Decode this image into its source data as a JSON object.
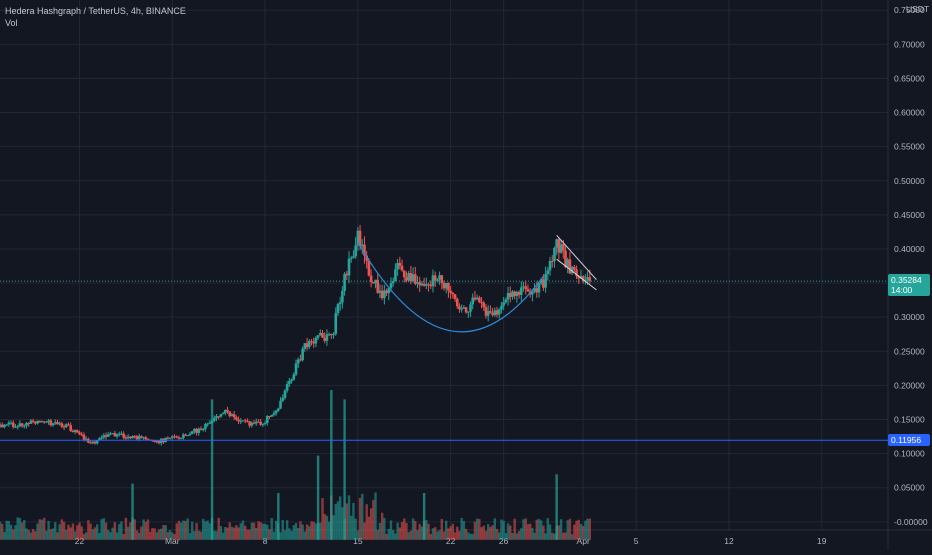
{
  "header": {
    "symbol_line": "Hedera Hashgraph / TetherUS, 4h, BINANCE",
    "indicator_label": "Vol"
  },
  "price_axis": {
    "currency": "USDT",
    "ticks": [
      "0.75000",
      "0.70000",
      "0.65000",
      "0.60000",
      "0.55000",
      "0.50000",
      "0.45000",
      "0.40000",
      "0.35000",
      "0.30000",
      "0.25000",
      "0.20000",
      "0.15000",
      "0.10000",
      "0.05000",
      "-0.00000"
    ]
  },
  "time_axis": {
    "ticks": [
      "22",
      "Mar",
      "8",
      "15",
      "22",
      "26",
      "Apr",
      "5",
      "12",
      "19"
    ]
  },
  "last_price": {
    "value": "0.35284",
    "countdown": "14:00",
    "color": "#26a69a"
  },
  "horizontal_line": {
    "value": "0.11956",
    "color": "#2962ff"
  },
  "colors": {
    "up": "#26a69a",
    "down": "#ef5350",
    "background": "#131722",
    "grid": "#232735",
    "cup_curve": "#2d8ad8"
  },
  "chart_data": {
    "type": "candlestick",
    "title": "Hedera Hashgraph / TetherUS, 4h, BINANCE",
    "interval": "4h",
    "ylim": [
      -0.012,
      0.765
    ],
    "x_range": [
      "2021-02-16",
      "2021-04-24"
    ],
    "close_path": [
      {
        "date": "2021-02-16",
        "close": 0.14
      },
      {
        "date": "2021-02-19",
        "close": 0.148
      },
      {
        "date": "2021-02-21",
        "close": 0.14
      },
      {
        "date": "2021-02-23",
        "close": 0.115
      },
      {
        "date": "2021-02-24",
        "close": 0.128
      },
      {
        "date": "2021-02-26",
        "close": 0.125
      },
      {
        "date": "2021-02-28",
        "close": 0.118
      },
      {
        "date": "2021-03-02",
        "close": 0.128
      },
      {
        "date": "2021-03-03",
        "close": 0.135
      },
      {
        "date": "2021-03-05",
        "close": 0.16
      },
      {
        "date": "2021-03-06",
        "close": 0.15
      },
      {
        "date": "2021-03-07",
        "close": 0.142
      },
      {
        "date": "2021-03-08",
        "close": 0.148
      },
      {
        "date": "2021-03-09",
        "close": 0.17
      },
      {
        "date": "2021-03-10",
        "close": 0.21
      },
      {
        "date": "2021-03-11",
        "close": 0.26
      },
      {
        "date": "2021-03-12",
        "close": 0.27
      },
      {
        "date": "2021-03-13",
        "close": 0.268
      },
      {
        "date": "2021-03-14",
        "close": 0.36
      },
      {
        "date": "2021-03-15",
        "close": 0.42
      },
      {
        "date": "2021-03-16",
        "close": 0.36
      },
      {
        "date": "2021-03-17",
        "close": 0.33
      },
      {
        "date": "2021-03-18",
        "close": 0.37
      },
      {
        "date": "2021-03-19",
        "close": 0.36
      },
      {
        "date": "2021-03-20",
        "close": 0.345
      },
      {
        "date": "2021-03-21",
        "close": 0.355
      },
      {
        "date": "2021-03-22",
        "close": 0.34
      },
      {
        "date": "2021-03-23",
        "close": 0.31
      },
      {
        "date": "2021-03-24",
        "close": 0.33
      },
      {
        "date": "2021-03-25",
        "close": 0.3
      },
      {
        "date": "2021-03-26",
        "close": 0.32
      },
      {
        "date": "2021-03-27",
        "close": 0.34
      },
      {
        "date": "2021-03-28",
        "close": 0.335
      },
      {
        "date": "2021-03-29",
        "close": 0.35
      },
      {
        "date": "2021-03-30",
        "close": 0.41
      },
      {
        "date": "2021-03-31",
        "close": 0.37
      },
      {
        "date": "2021-04-01",
        "close": 0.35284
      }
    ],
    "cup_curve": {
      "start": {
        "date": "2021-03-15",
        "price": 0.41
      },
      "bottom": {
        "date": "2021-03-22",
        "price": 0.28
      },
      "end": {
        "date": "2021-03-29",
        "price": 0.36
      }
    },
    "channel_lines": [
      {
        "from": {
          "date": "2021-03-30",
          "price": 0.42
        },
        "to": {
          "date": "2021-04-02",
          "price": 0.355
        }
      },
      {
        "from": {
          "date": "2021-03-30",
          "price": 0.385
        },
        "to": {
          "date": "2021-04-02",
          "price": 0.34
        }
      }
    ],
    "volume_spikes": [
      {
        "date": "2021-02-26",
        "value": 0.06
      },
      {
        "date": "2021-03-04",
        "value": 0.15
      },
      {
        "date": "2021-03-09",
        "value": 0.05
      },
      {
        "date": "2021-03-12",
        "value": 0.09
      },
      {
        "date": "2021-03-13",
        "value": 0.16
      },
      {
        "date": "2021-03-14",
        "value": 0.15
      },
      {
        "date": "2021-03-20",
        "value": 0.05
      },
      {
        "date": "2021-03-30",
        "value": 0.07
      }
    ]
  }
}
